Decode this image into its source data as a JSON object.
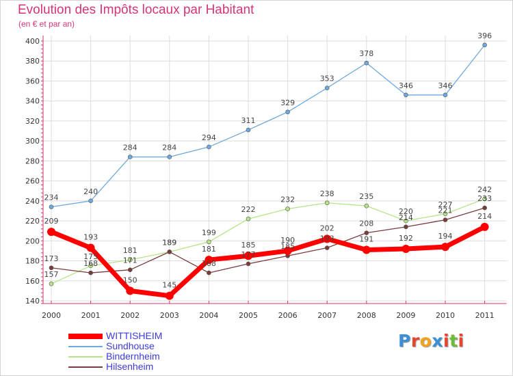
{
  "title": "Evolution des Impôts locaux par Habitant",
  "subtitle": "(en € et par an)",
  "logo": {
    "letters": [
      "P",
      "r",
      "o",
      "x",
      "i",
      "t",
      "i"
    ],
    "colors": [
      "#3a8fd6",
      "#e8452c",
      "#f3a31b",
      "#3a8fd6",
      "#e8452c",
      "#6dbb3a",
      "#e8452c"
    ]
  },
  "chart_data": {
    "type": "line",
    "categories": [
      "2000",
      "2001",
      "2002",
      "2003",
      "2004",
      "2005",
      "2006",
      "2007",
      "2008",
      "2009",
      "2010",
      "2011"
    ],
    "ylim": [
      140,
      400
    ],
    "yticks": [
      "140",
      "160",
      "180",
      "200",
      "220",
      "240",
      "260",
      "280",
      "300",
      "320",
      "340",
      "360",
      "380",
      "400"
    ],
    "grid": true,
    "legend_position": "bottom-left",
    "series": [
      {
        "name": "WITTISHEIM",
        "color": "#ff0000",
        "values": [
          209,
          193,
          150,
          145,
          181,
          185,
          190,
          202,
          191,
          192,
          194,
          214
        ]
      },
      {
        "name": "Sundhouse",
        "color": "#6fa8dc",
        "values": [
          234,
          240,
          284,
          284,
          294,
          311,
          329,
          353,
          378,
          346,
          346,
          396
        ]
      },
      {
        "name": "Bindernheim",
        "color": "#b6e388",
        "values": [
          157,
          175,
          181,
          189,
          199,
          222,
          232,
          238,
          235,
          220,
          227,
          242
        ]
      },
      {
        "name": "Hilsenheim",
        "color": "#7a3b3b",
        "values": [
          173,
          168,
          171,
          189,
          168,
          177,
          185,
          193,
          208,
          214,
          221,
          233
        ]
      }
    ]
  }
}
